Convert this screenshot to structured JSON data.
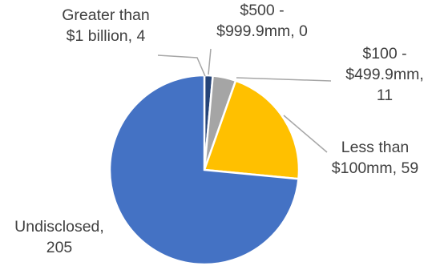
{
  "chart_data": {
    "type": "pie",
    "title": "",
    "legend": "none",
    "slices": [
      {
        "label": "Greater than $1 billion",
        "value": 4,
        "color": "#264478",
        "label_lines": [
          "Greater than",
          "$1 billion, 4"
        ]
      },
      {
        "label": "$500 - $999.9mm",
        "value": 0,
        "color": "#ED7D31",
        "label_lines": [
          "$500 -",
          "$999.9mm, 0"
        ]
      },
      {
        "label": "$100 - $499.9mm",
        "value": 11,
        "color": "#A5A5A5",
        "label_lines": [
          "$100 -",
          "$499.9mm,",
          "11"
        ]
      },
      {
        "label": "Less than $100mm",
        "value": 59,
        "color": "#FFC000",
        "label_lines": [
          "Less than",
          "$100mm, 59"
        ]
      },
      {
        "label": "Undisclosed",
        "value": 205,
        "color": "#4472C4",
        "label_lines": [
          "Undisclosed,",
          "205"
        ]
      }
    ]
  }
}
